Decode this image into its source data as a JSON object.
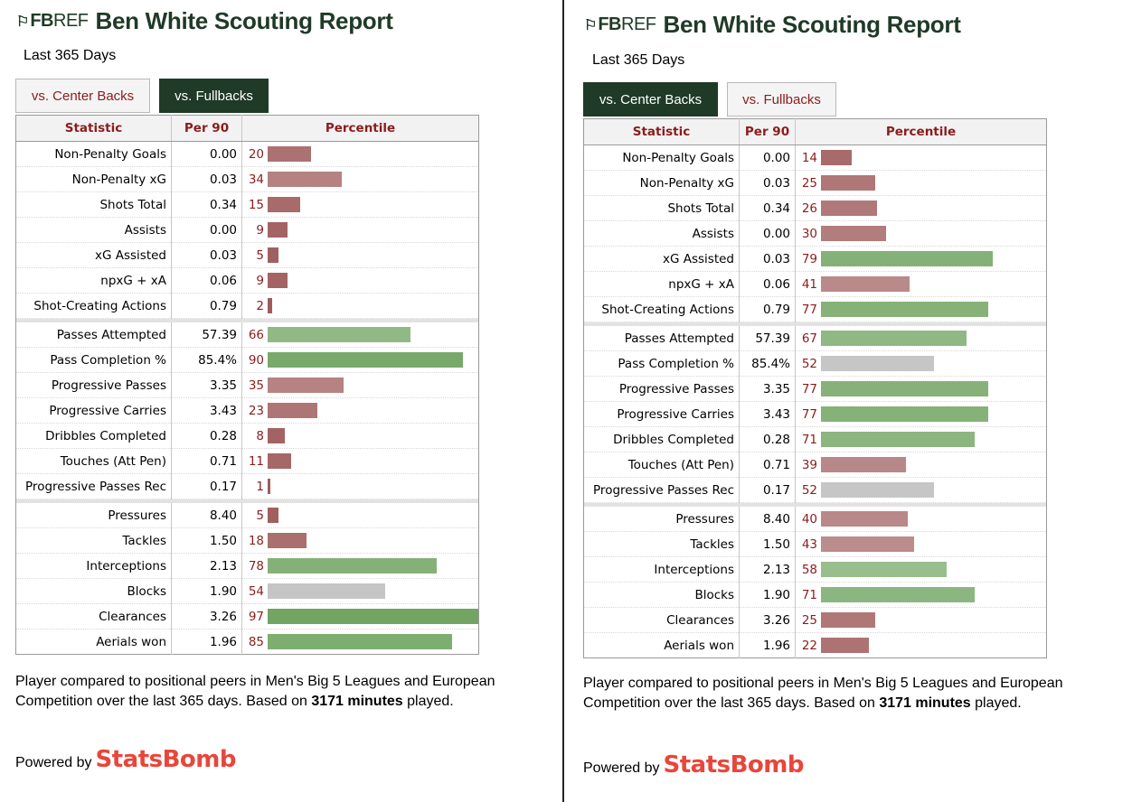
{
  "panels": [
    {
      "logo_mark": "⚐",
      "logo_fb": "FB",
      "logo_ref": "REF",
      "title": "Ben White Scouting Report",
      "subtitle": "Last 365 Days",
      "tabs": [
        {
          "label": "vs. Center Backs",
          "active": false
        },
        {
          "label": "vs. Fullbacks",
          "active": true
        }
      ],
      "headers": {
        "statistic": "Statistic",
        "per90": "Per 90",
        "percentile": "Percentile"
      },
      "groups": [
        [
          {
            "stat": "Non-Penalty Goals",
            "per90": "0.00",
            "pct": 20
          },
          {
            "stat": "Non-Penalty xG",
            "per90": "0.03",
            "pct": 34
          },
          {
            "stat": "Shots Total",
            "per90": "0.34",
            "pct": 15
          },
          {
            "stat": "Assists",
            "per90": "0.00",
            "pct": 9
          },
          {
            "stat": "xG Assisted",
            "per90": "0.03",
            "pct": 5
          },
          {
            "stat": "npxG + xA",
            "per90": "0.06",
            "pct": 9
          },
          {
            "stat": "Shot-Creating Actions",
            "per90": "0.79",
            "pct": 2
          }
        ],
        [
          {
            "stat": "Passes Attempted",
            "per90": "57.39",
            "pct": 66
          },
          {
            "stat": "Pass Completion %",
            "per90": "85.4%",
            "pct": 90
          },
          {
            "stat": "Progressive Passes",
            "per90": "3.35",
            "pct": 35
          },
          {
            "stat": "Progressive Carries",
            "per90": "3.43",
            "pct": 23
          },
          {
            "stat": "Dribbles Completed",
            "per90": "0.28",
            "pct": 8
          },
          {
            "stat": "Touches (Att Pen)",
            "per90": "0.71",
            "pct": 11
          },
          {
            "stat": "Progressive Passes Rec",
            "per90": "0.17",
            "pct": 1
          }
        ],
        [
          {
            "stat": "Pressures",
            "per90": "8.40",
            "pct": 5
          },
          {
            "stat": "Tackles",
            "per90": "1.50",
            "pct": 18
          },
          {
            "stat": "Interceptions",
            "per90": "2.13",
            "pct": 78
          },
          {
            "stat": "Blocks",
            "per90": "1.90",
            "pct": 54
          },
          {
            "stat": "Clearances",
            "per90": "3.26",
            "pct": 97
          },
          {
            "stat": "Aerials won",
            "per90": "1.96",
            "pct": 85
          }
        ]
      ],
      "footnote_pre": "Player compared to positional peers in Men's Big 5 Leagues and European Competition over the last 365 days. Based on ",
      "footnote_bold": "3171 minutes",
      "footnote_post": " played.",
      "powered_label": "Powered by",
      "powered_brand": "StatsBomb"
    },
    {
      "logo_mark": "⚐",
      "logo_fb": "FB",
      "logo_ref": "REF",
      "title": "Ben White Scouting Report",
      "subtitle": "Last 365 Days",
      "tabs": [
        {
          "label": "vs. Center Backs",
          "active": true
        },
        {
          "label": "vs. Fullbacks",
          "active": false
        }
      ],
      "headers": {
        "statistic": "Statistic",
        "per90": "Per 90",
        "percentile": "Percentile"
      },
      "groups": [
        [
          {
            "stat": "Non-Penalty Goals",
            "per90": "0.00",
            "pct": 14
          },
          {
            "stat": "Non-Penalty xG",
            "per90": "0.03",
            "pct": 25
          },
          {
            "stat": "Shots Total",
            "per90": "0.34",
            "pct": 26
          },
          {
            "stat": "Assists",
            "per90": "0.00",
            "pct": 30
          },
          {
            "stat": "xG Assisted",
            "per90": "0.03",
            "pct": 79
          },
          {
            "stat": "npxG + xA",
            "per90": "0.06",
            "pct": 41
          },
          {
            "stat": "Shot-Creating Actions",
            "per90": "0.79",
            "pct": 77
          }
        ],
        [
          {
            "stat": "Passes Attempted",
            "per90": "57.39",
            "pct": 67
          },
          {
            "stat": "Pass Completion %",
            "per90": "85.4%",
            "pct": 52
          },
          {
            "stat": "Progressive Passes",
            "per90": "3.35",
            "pct": 77
          },
          {
            "stat": "Progressive Carries",
            "per90": "3.43",
            "pct": 77
          },
          {
            "stat": "Dribbles Completed",
            "per90": "0.28",
            "pct": 71
          },
          {
            "stat": "Touches (Att Pen)",
            "per90": "0.71",
            "pct": 39
          },
          {
            "stat": "Progressive Passes Rec",
            "per90": "0.17",
            "pct": 52
          }
        ],
        [
          {
            "stat": "Pressures",
            "per90": "8.40",
            "pct": 40
          },
          {
            "stat": "Tackles",
            "per90": "1.50",
            "pct": 43
          },
          {
            "stat": "Interceptions",
            "per90": "2.13",
            "pct": 58
          },
          {
            "stat": "Blocks",
            "per90": "1.90",
            "pct": 71
          },
          {
            "stat": "Clearances",
            "per90": "3.26",
            "pct": 25
          },
          {
            "stat": "Aerials won",
            "per90": "1.96",
            "pct": 22
          }
        ]
      ],
      "footnote_pre": "Player compared to positional peers in Men's Big 5 Leagues and European Competition over the last 365 days. Based on ",
      "footnote_bold": "3171 minutes",
      "footnote_post": " played.",
      "powered_label": "Powered by",
      "powered_brand": "StatsBomb"
    }
  ],
  "colors": {
    "brand_green": "#1f3a26",
    "header_red": "#8c1c1c",
    "statsbomb_red": "#e8463a",
    "bar_low": "#9e5a5a",
    "bar_mid": "#a9a9a9",
    "bar_high": "#6fa35f"
  }
}
